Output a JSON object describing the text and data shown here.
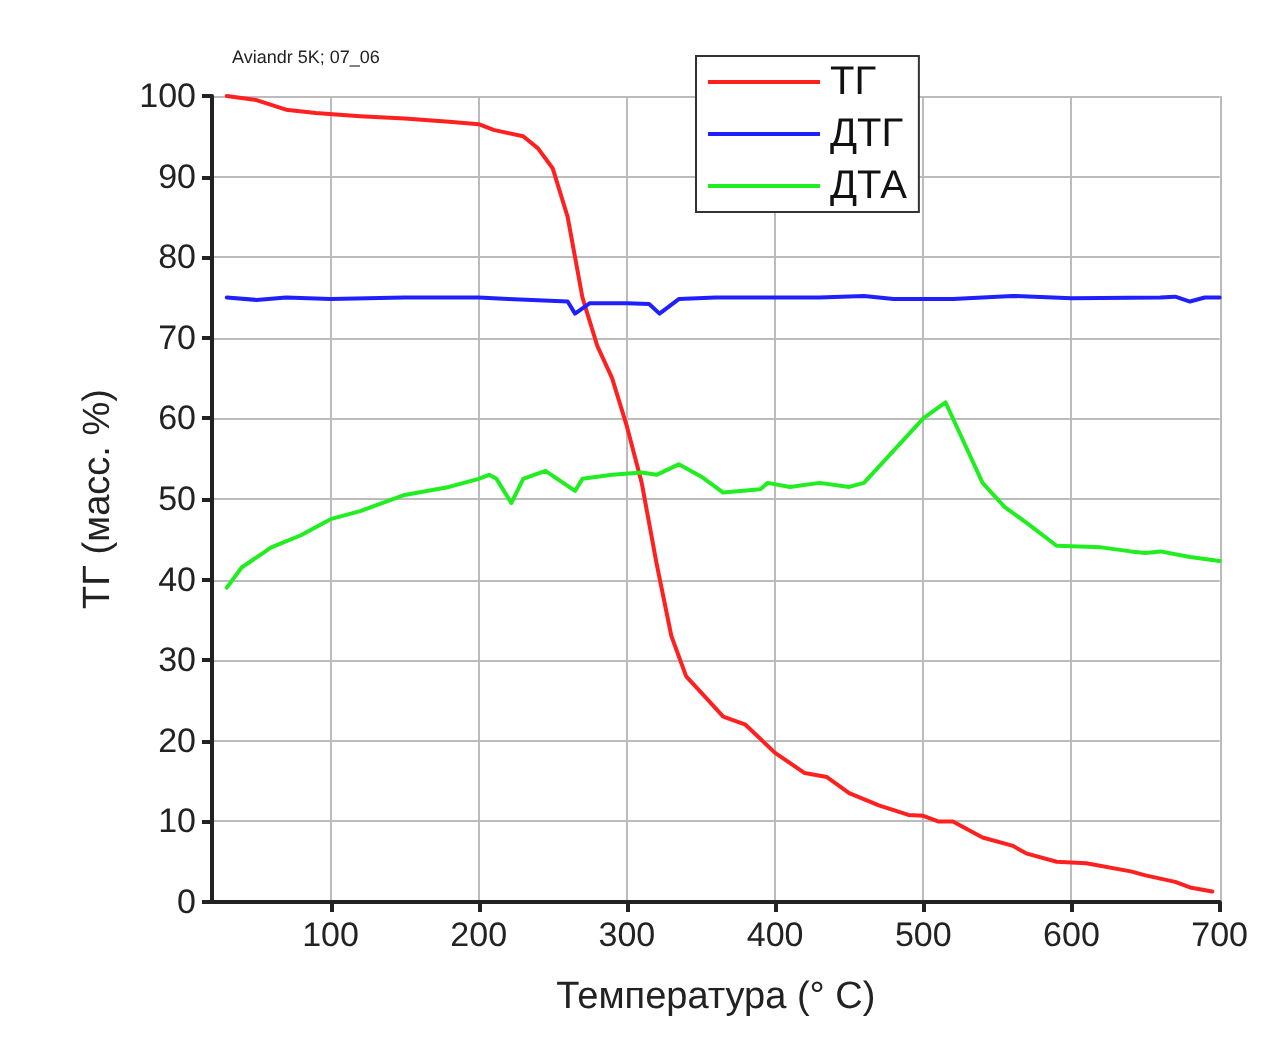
{
  "chart_data": {
    "type": "line",
    "xlabel": "Температура (° C)",
    "ylabel": "ТГ (масс. %)",
    "annotations": [
      "Aviandr 5K; 07_06"
    ],
    "xlim": [
      20,
      700
    ],
    "xticks": [
      100,
      200,
      300,
      400,
      500,
      600,
      700
    ],
    "ylim": [
      0,
      100
    ],
    "yticks": [
      0,
      10,
      20,
      30,
      40,
      50,
      60,
      70,
      80,
      90,
      100
    ],
    "grid": true,
    "legend": "top",
    "marker": "none",
    "line_style": "solid",
    "series": [
      {
        "name": "ТГ",
        "color": "#ff2020",
        "x": [
          30,
          50,
          70,
          90,
          120,
          150,
          180,
          200,
          210,
          230,
          240,
          250,
          260,
          270,
          280,
          290,
          300,
          310,
          320,
          330,
          340,
          350,
          365,
          380,
          400,
          420,
          435,
          450,
          470,
          490,
          500,
          510,
          520,
          530,
          540,
          560,
          570,
          590,
          610,
          640,
          650,
          670,
          680,
          695
        ],
        "values": [
          100,
          99.5,
          98.3,
          97.9,
          97.5,
          97.2,
          96.8,
          96.5,
          95.8,
          95,
          93.5,
          91,
          85,
          75,
          69,
          65,
          59,
          52,
          42,
          33,
          28,
          26,
          23,
          22,
          18.5,
          16,
          15.5,
          13.5,
          12,
          10.8,
          10.7,
          10,
          10,
          9,
          8,
          7,
          6,
          5,
          4.8,
          3.8,
          3.3,
          2.5,
          1.8,
          1.3
        ]
      },
      {
        "name": "ДТГ",
        "color": "#2020ff",
        "x": [
          30,
          50,
          70,
          100,
          150,
          200,
          220,
          260,
          265,
          275,
          300,
          315,
          322,
          335,
          360,
          400,
          430,
          460,
          480,
          520,
          560,
          600,
          660,
          670,
          680,
          690,
          700
        ],
        "values": [
          75,
          74.7,
          75,
          74.8,
          75,
          75,
          74.8,
          74.5,
          73,
          74.3,
          74.3,
          74.2,
          73,
          74.8,
          75,
          75,
          75,
          75.2,
          74.8,
          74.8,
          75.2,
          74.9,
          75,
          75.1,
          74.5,
          75,
          75
        ]
      },
      {
        "name": "ДТА",
        "color": "#20ee20",
        "x": [
          30,
          40,
          60,
          80,
          100,
          120,
          150,
          180,
          200,
          207,
          212,
          222,
          230,
          245,
          265,
          270,
          290,
          310,
          320,
          335,
          350,
          365,
          390,
          395,
          410,
          430,
          450,
          460,
          480,
          500,
          515,
          525,
          540,
          555,
          570,
          590,
          620,
          640,
          650,
          660,
          680,
          700
        ],
        "values": [
          39,
          41.5,
          44,
          45.5,
          47.5,
          48.5,
          50.5,
          51.5,
          52.5,
          53,
          52.5,
          49.5,
          52.5,
          53.5,
          51,
          52.5,
          53,
          53.3,
          53,
          54.3,
          52.8,
          50.8,
          51.2,
          52,
          51.5,
          52,
          51.5,
          52,
          56,
          60,
          62,
          58,
          52,
          49,
          47,
          44.2,
          44,
          43.5,
          43.3,
          43.5,
          42.8,
          42.3
        ]
      }
    ]
  }
}
